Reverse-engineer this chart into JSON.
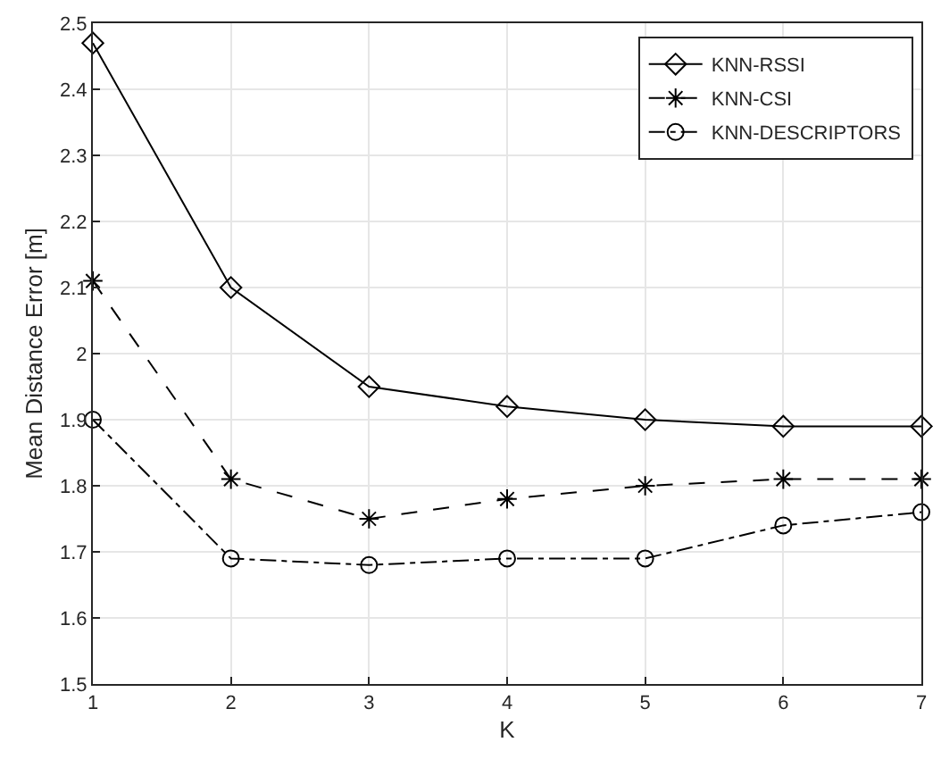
{
  "chart_data": {
    "type": "line",
    "xlabel": "K",
    "ylabel": "Mean Distance Error [m]",
    "x": [
      1,
      2,
      3,
      4,
      5,
      6,
      7
    ],
    "series": [
      {
        "name": "KNN-RSSI",
        "color": "#000000",
        "marker": "diamond",
        "line_style": "solid",
        "values": [
          2.47,
          2.1,
          1.95,
          1.92,
          1.9,
          1.89,
          1.89
        ]
      },
      {
        "name": "KNN-CSI",
        "color": "#000000",
        "marker": "cross",
        "line_style": "dashed",
        "values": [
          2.11,
          1.81,
          1.75,
          1.78,
          1.8,
          1.81,
          1.81
        ]
      },
      {
        "name": "KNN-DESCRIPTORS",
        "color": "#000000",
        "marker": "circle",
        "line_style": "dashdot",
        "values": [
          1.9,
          1.69,
          1.68,
          1.69,
          1.69,
          1.74,
          1.76
        ]
      }
    ],
    "xlim": [
      1,
      7
    ],
    "xticks": [
      1,
      2,
      3,
      4,
      5,
      6,
      7
    ],
    "ylim": [
      1.5,
      2.5
    ],
    "yticks": [
      1.5,
      1.6,
      1.7,
      1.8,
      1.9,
      2,
      2.1,
      2.2,
      2.3,
      2.4,
      2.5
    ],
    "grid": true,
    "legend": "top right"
  }
}
